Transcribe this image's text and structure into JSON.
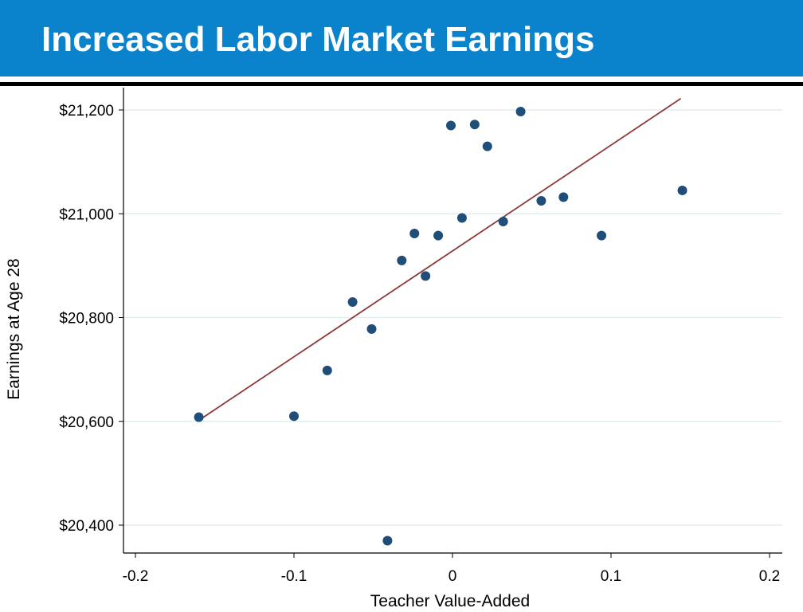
{
  "slide": {
    "title": "Increased Labor Market Earnings",
    "colors": {
      "title_bar": "#0a82cc",
      "title_text": "#ffffff"
    }
  },
  "chart_data": {
    "type": "scatter",
    "title": "",
    "xlabel": "Teacher Value-Added",
    "ylabel": "Earnings at Age 28",
    "xlim": [
      -0.2,
      0.2
    ],
    "ylim": [
      20400,
      21200
    ],
    "x_ticks": [
      -0.2,
      -0.1,
      0,
      0.1,
      0.2
    ],
    "x_tick_labels": [
      "-0.2",
      "-0.1",
      "0",
      "0.1",
      "0.2"
    ],
    "y_ticks": [
      20400,
      20600,
      20800,
      21000,
      21200
    ],
    "y_tick_labels": [
      "$20,400",
      "$20,600",
      "$20,800",
      "$21,000",
      "$21,200"
    ],
    "grid": true,
    "points": [
      {
        "x": -0.16,
        "y": 20608
      },
      {
        "x": -0.1,
        "y": 20610
      },
      {
        "x": -0.079,
        "y": 20698
      },
      {
        "x": -0.063,
        "y": 20830
      },
      {
        "x": -0.051,
        "y": 20778
      },
      {
        "x": -0.041,
        "y": 20370
      },
      {
        "x": -0.032,
        "y": 20910
      },
      {
        "x": -0.024,
        "y": 20962
      },
      {
        "x": -0.017,
        "y": 20880
      },
      {
        "x": -0.009,
        "y": 20958
      },
      {
        "x": -0.001,
        "y": 21170
      },
      {
        "x": 0.006,
        "y": 20992
      },
      {
        "x": 0.014,
        "y": 21172
      },
      {
        "x": 0.022,
        "y": 21130
      },
      {
        "x": 0.032,
        "y": 20985
      },
      {
        "x": 0.043,
        "y": 21197
      },
      {
        "x": 0.056,
        "y": 21025
      },
      {
        "x": 0.07,
        "y": 21032
      },
      {
        "x": 0.094,
        "y": 20958
      },
      {
        "x": 0.145,
        "y": 21045
      }
    ],
    "fit_line": {
      "x": [
        -0.16,
        0.144
      ],
      "y": [
        20602,
        21222
      ]
    },
    "colors": {
      "points": "#1f4e79",
      "fit_line": "#8b3a3a",
      "grid": "#e3ecef",
      "axis": "#000000"
    }
  }
}
